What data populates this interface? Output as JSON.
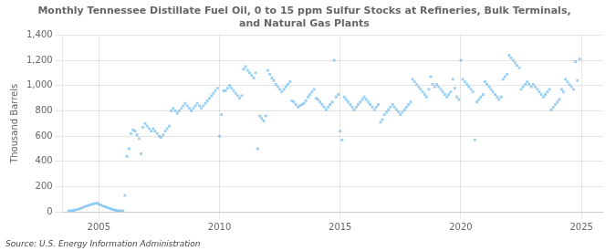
{
  "chart_data": {
    "type": "scatter",
    "title": "Monthly Tennessee Distillate Fuel Oil, 0 to 15 ppm Sulfur Stocks at Refineries, Bulk Terminals,\nand Natural Gas Plants",
    "ylabel": "Thousand Barrels",
    "annotations": [
      "Source: U.S. Energy Information Administration"
    ],
    "marker": "square",
    "grid": true,
    "xlim": [
      2003.5,
      2025.9
    ],
    "xticks": [
      2005,
      2010,
      2015,
      2020,
      2025
    ],
    "ylim": [
      0,
      1400
    ],
    "yticks": [
      0,
      200,
      400,
      600,
      800,
      {
        "value": 1000,
        "label": "1,000"
      },
      {
        "value": 1200,
        "label": "1,200"
      },
      {
        "value": 1400,
        "label": "1,400"
      }
    ],
    "x": [
      2003.75,
      2003.83,
      2003.92,
      2004.0,
      2004.08,
      2004.17,
      2004.25,
      2004.33,
      2004.42,
      2004.5,
      2004.58,
      2004.67,
      2004.75,
      2004.83,
      2004.92,
      2005.0,
      2005.08,
      2005.17,
      2005.25,
      2005.33,
      2005.42,
      2005.5,
      2005.58,
      2005.67,
      2005.75,
      2005.83,
      2005.92,
      2006.0,
      2006.08,
      2006.17,
      2006.25,
      2006.33,
      2006.42,
      2006.5,
      2006.58,
      2006.67,
      2006.75,
      2006.83,
      2006.92,
      2007.0,
      2007.08,
      2007.17,
      2007.25,
      2007.33,
      2007.42,
      2007.5,
      2007.58,
      2007.67,
      2007.75,
      2007.83,
      2007.92,
      2008.0,
      2008.08,
      2008.17,
      2008.25,
      2008.33,
      2008.42,
      2008.5,
      2008.58,
      2008.67,
      2008.75,
      2008.83,
      2008.92,
      2009.0,
      2009.08,
      2009.17,
      2009.25,
      2009.33,
      2009.42,
      2009.5,
      2009.58,
      2009.67,
      2009.75,
      2009.83,
      2009.92,
      2010.0,
      2010.08,
      2010.17,
      2010.25,
      2010.33,
      2010.42,
      2010.5,
      2010.58,
      2010.67,
      2010.75,
      2010.83,
      2010.92,
      2011.0,
      2011.08,
      2011.17,
      2011.25,
      2011.33,
      2011.42,
      2011.5,
      2011.58,
      2011.67,
      2011.75,
      2011.83,
      2011.92,
      2012.0,
      2012.08,
      2012.17,
      2012.25,
      2012.33,
      2012.42,
      2012.5,
      2012.58,
      2012.67,
      2012.75,
      2012.83,
      2012.92,
      2013.0,
      2013.08,
      2013.17,
      2013.25,
      2013.33,
      2013.42,
      2013.5,
      2013.58,
      2013.67,
      2013.75,
      2013.83,
      2013.92,
      2014.0,
      2014.08,
      2014.17,
      2014.25,
      2014.33,
      2014.42,
      2014.5,
      2014.58,
      2014.67,
      2014.75,
      2014.83,
      2014.92,
      2015.0,
      2015.08,
      2015.17,
      2015.25,
      2015.33,
      2015.42,
      2015.5,
      2015.58,
      2015.67,
      2015.75,
      2015.83,
      2015.92,
      2016.0,
      2016.08,
      2016.17,
      2016.25,
      2016.33,
      2016.42,
      2016.5,
      2016.58,
      2016.67,
      2016.75,
      2016.83,
      2016.92,
      2017.0,
      2017.08,
      2017.17,
      2017.25,
      2017.33,
      2017.42,
      2017.5,
      2017.58,
      2017.67,
      2017.75,
      2017.83,
      2017.92,
      2018.0,
      2018.08,
      2018.17,
      2018.25,
      2018.33,
      2018.42,
      2018.5,
      2018.58,
      2018.67,
      2018.75,
      2018.83,
      2018.92,
      2019.0,
      2019.08,
      2019.17,
      2019.25,
      2019.33,
      2019.42,
      2019.5,
      2019.58,
      2019.67,
      2019.75,
      2019.83,
      2019.92,
      2020.0,
      2020.08,
      2020.17,
      2020.25,
      2020.33,
      2020.42,
      2020.5,
      2020.58,
      2020.67,
      2020.75,
      2020.83,
      2020.92,
      2021.0,
      2021.08,
      2021.17,
      2021.25,
      2021.33,
      2021.42,
      2021.5,
      2021.58,
      2021.67,
      2021.75,
      2021.83,
      2021.92,
      2022.0,
      2022.08,
      2022.17,
      2022.25,
      2022.33,
      2022.42,
      2022.5,
      2022.58,
      2022.67,
      2022.75,
      2022.83,
      2022.92,
      2023.0,
      2023.08,
      2023.17,
      2023.25,
      2023.33,
      2023.42,
      2023.5,
      2023.58,
      2023.67,
      2023.75,
      2023.83,
      2023.92,
      2024.0,
      2024.08,
      2024.17,
      2024.25,
      2024.33,
      2024.42,
      2024.5,
      2024.58,
      2024.67,
      2024.75,
      2024.83,
      2024.92
    ],
    "values": [
      7,
      9,
      11,
      14,
      18,
      22,
      28,
      35,
      42,
      48,
      52,
      58,
      62,
      66,
      70,
      62,
      55,
      48,
      42,
      36,
      30,
      24,
      18,
      14,
      11,
      9,
      7,
      9,
      130,
      440,
      500,
      620,
      650,
      640,
      610,
      580,
      460,
      670,
      700,
      680,
      660,
      640,
      660,
      640,
      620,
      600,
      590,
      610,
      640,
      660,
      680,
      800,
      820,
      800,
      780,
      800,
      820,
      840,
      860,
      840,
      820,
      800,
      820,
      840,
      860,
      840,
      820,
      840,
      860,
      880,
      900,
      920,
      940,
      960,
      980,
      600,
      770,
      960,
      960,
      980,
      1000,
      980,
      960,
      940,
      920,
      900,
      920,
      1130,
      1150,
      1120,
      1100,
      1080,
      1060,
      1100,
      500,
      760,
      740,
      720,
      760,
      1120,
      1090,
      1060,
      1040,
      1010,
      990,
      970,
      950,
      970,
      990,
      1010,
      1030,
      880,
      870,
      850,
      830,
      840,
      850,
      860,
      880,
      910,
      930,
      950,
      970,
      900,
      890,
      870,
      850,
      830,
      810,
      830,
      850,
      870,
      1200,
      910,
      930,
      640,
      570,
      910,
      890,
      870,
      850,
      830,
      810,
      830,
      850,
      870,
      890,
      910,
      890,
      870,
      850,
      830,
      810,
      830,
      850,
      710,
      730,
      770,
      790,
      810,
      830,
      850,
      830,
      810,
      790,
      770,
      790,
      810,
      830,
      850,
      870,
      1050,
      1030,
      1010,
      990,
      970,
      950,
      930,
      910,
      970,
      1070,
      1010,
      990,
      1010,
      990,
      970,
      950,
      930,
      910,
      930,
      950,
      1050,
      980,
      910,
      890,
      1200,
      1050,
      1030,
      1010,
      990,
      970,
      950,
      570,
      870,
      890,
      910,
      930,
      1030,
      1010,
      990,
      970,
      950,
      930,
      910,
      890,
      910,
      1050,
      1070,
      1090,
      1240,
      1220,
      1200,
      1180,
      1160,
      1140,
      970,
      990,
      1010,
      1030,
      1010,
      990,
      1010,
      990,
      970,
      950,
      930,
      910,
      930,
      950,
      970,
      810,
      830,
      850,
      870,
      890,
      970,
      950,
      1050,
      1030,
      1010,
      990,
      970,
      1190,
      1040,
      1210
    ]
  }
}
